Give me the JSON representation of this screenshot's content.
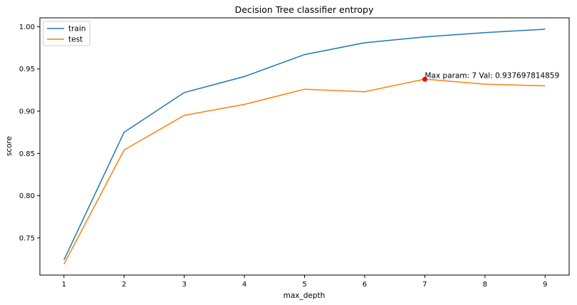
{
  "chart_data": {
    "type": "line",
    "title": "Decision Tree classifier entropy",
    "xlabel": "max_depth",
    "ylabel": "score",
    "x": [
      1,
      2,
      3,
      4,
      5,
      6,
      7,
      8,
      9
    ],
    "xticks": [
      "1",
      "2",
      "3",
      "4",
      "5",
      "6",
      "7",
      "8",
      "9"
    ],
    "xlim": [
      0.6,
      9.4
    ],
    "yticks": [
      "0.75",
      "0.80",
      "0.85",
      "0.90",
      "0.95",
      "1.00"
    ],
    "ytick_values": [
      0.75,
      0.8,
      0.85,
      0.9,
      0.95,
      1.0
    ],
    "ylim": [
      0.706,
      1.0105
    ],
    "grid": false,
    "legend_position": "top-left",
    "series": [
      {
        "name": "train",
        "color": "#1f77b4",
        "values": [
          0.724,
          0.875,
          0.922,
          0.941,
          0.967,
          0.981,
          0.988,
          0.993,
          0.997
        ]
      },
      {
        "name": "test",
        "color": "#ff7f0e",
        "values": [
          0.719,
          0.854,
          0.895,
          0.908,
          0.926,
          0.923,
          0.938,
          0.932,
          0.93
        ]
      }
    ],
    "annotation": {
      "text": "Max param: 7 Val: 0.937697814859",
      "x": 7,
      "y": 0.9377,
      "marker_color": "#ff0000"
    }
  }
}
